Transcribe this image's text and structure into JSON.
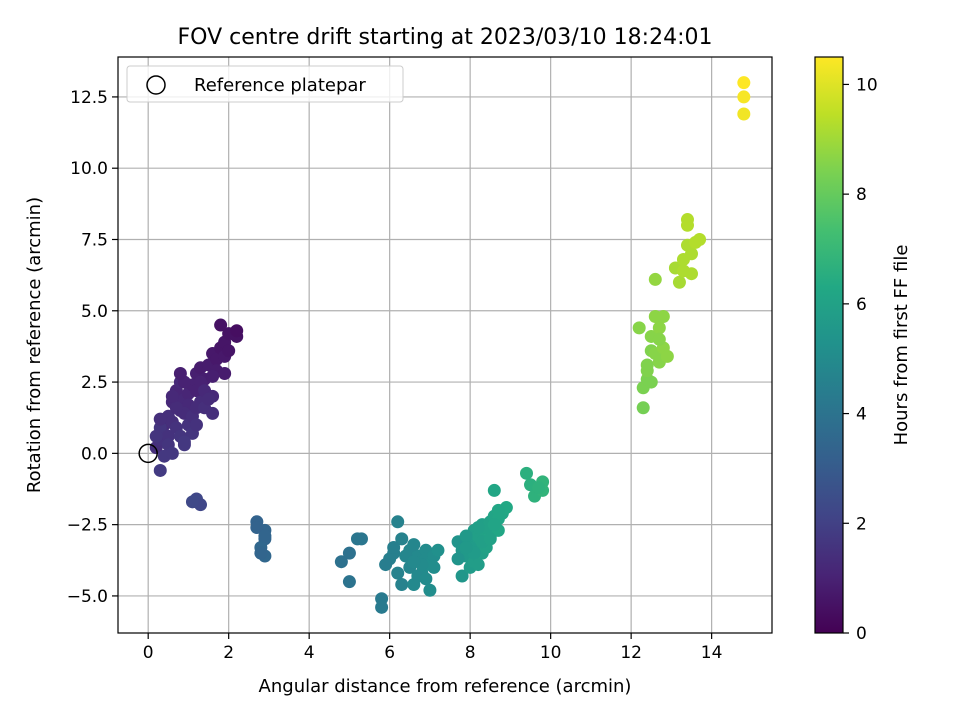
{
  "chart_data": {
    "type": "scatter",
    "title": "FOV centre drift starting at 2023/03/10 18:24:01",
    "xlabel": "Angular distance from reference (arcmin)",
    "ylabel": "Rotation from reference (arcmin)",
    "xlim": [
      -0.75,
      15.5
    ],
    "ylim": [
      -6.3,
      13.9
    ],
    "xticks": [
      0,
      2,
      4,
      6,
      8,
      10,
      12,
      14
    ],
    "xtick_labels": [
      "0",
      "2",
      "4",
      "6",
      "8",
      "10",
      "12",
      "14"
    ],
    "yticks": [
      -5.0,
      -2.5,
      0.0,
      2.5,
      5.0,
      7.5,
      10.0,
      12.5
    ],
    "ytick_labels": [
      "−5.0",
      "−2.5",
      "0.0",
      "2.5",
      "5.0",
      "7.5",
      "10.0",
      "12.5"
    ],
    "grid": true,
    "legend": {
      "position": "upper-left",
      "entries": [
        {
          "label": "Reference platepar",
          "marker": "open-circle"
        }
      ]
    },
    "reference_point": {
      "x": 0,
      "y": 0
    },
    "colorbar": {
      "label": "Hours from first FF file",
      "colormap": "viridis",
      "range": [
        0,
        10.5
      ],
      "ticks": [
        0,
        2,
        4,
        6,
        8,
        10
      ],
      "tick_labels": [
        "0",
        "2",
        "4",
        "6",
        "8",
        "10"
      ]
    },
    "points": [
      {
        "x": 0.2,
        "y": 0.2,
        "h": 1.4
      },
      {
        "x": 0.3,
        "y": 0.5,
        "h": 1.5
      },
      {
        "x": 0.4,
        "y": 1.0,
        "h": 1.3
      },
      {
        "x": 0.5,
        "y": 1.3,
        "h": 1.4
      },
      {
        "x": 0.3,
        "y": 0.9,
        "h": 1.6
      },
      {
        "x": 0.6,
        "y": 1.8,
        "h": 1.2
      },
      {
        "x": 0.7,
        "y": 2.2,
        "h": 1.1
      },
      {
        "x": 0.8,
        "y": 2.5,
        "h": 1.2
      },
      {
        "x": 0.5,
        "y": 0.6,
        "h": 1.5
      },
      {
        "x": 0.6,
        "y": 1.1,
        "h": 1.4
      },
      {
        "x": 0.8,
        "y": 1.5,
        "h": 1.3
      },
      {
        "x": 0.9,
        "y": 1.9,
        "h": 1.2
      },
      {
        "x": 1.0,
        "y": 2.1,
        "h": 1.1
      },
      {
        "x": 1.1,
        "y": 2.4,
        "h": 1.0
      },
      {
        "x": 1.2,
        "y": 2.8,
        "h": 0.9
      },
      {
        "x": 1.3,
        "y": 3.0,
        "h": 0.8
      },
      {
        "x": 1.4,
        "y": 2.6,
        "h": 0.9
      },
      {
        "x": 1.5,
        "y": 3.1,
        "h": 0.8
      },
      {
        "x": 1.6,
        "y": 3.5,
        "h": 0.7
      },
      {
        "x": 1.7,
        "y": 3.3,
        "h": 0.7
      },
      {
        "x": 1.8,
        "y": 3.7,
        "h": 0.6
      },
      {
        "x": 1.9,
        "y": 3.9,
        "h": 0.6
      },
      {
        "x": 2.0,
        "y": 4.2,
        "h": 0.5
      },
      {
        "x": 2.1,
        "y": 4.2,
        "h": 0.5
      },
      {
        "x": 1.8,
        "y": 4.5,
        "h": 0.5
      },
      {
        "x": 1.9,
        "y": 3.4,
        "h": 0.7
      },
      {
        "x": 2.0,
        "y": 3.6,
        "h": 0.6
      },
      {
        "x": 1.7,
        "y": 2.9,
        "h": 0.8
      },
      {
        "x": 1.9,
        "y": 2.8,
        "h": 0.8
      },
      {
        "x": 1.6,
        "y": 2.7,
        "h": 0.9
      },
      {
        "x": 1.3,
        "y": 2.5,
        "h": 1.0
      },
      {
        "x": 1.2,
        "y": 2.2,
        "h": 1.0
      },
      {
        "x": 1.0,
        "y": 1.7,
        "h": 1.2
      },
      {
        "x": 0.9,
        "y": 1.4,
        "h": 1.3
      },
      {
        "x": 0.7,
        "y": 0.9,
        "h": 1.5
      },
      {
        "x": 0.5,
        "y": 0.3,
        "h": 1.6
      },
      {
        "x": 0.4,
        "y": -0.1,
        "h": 1.7
      },
      {
        "x": 0.6,
        "y": 0.0,
        "h": 1.7
      },
      {
        "x": 0.8,
        "y": 0.6,
        "h": 1.6
      },
      {
        "x": 1.0,
        "y": 1.0,
        "h": 1.5
      },
      {
        "x": 1.1,
        "y": 1.3,
        "h": 1.4
      },
      {
        "x": 1.3,
        "y": 1.8,
        "h": 1.3
      },
      {
        "x": 1.4,
        "y": 2.2,
        "h": 1.2
      },
      {
        "x": 1.6,
        "y": 2.0,
        "h": 1.2
      },
      {
        "x": 1.2,
        "y": 1.6,
        "h": 1.3
      },
      {
        "x": 0.9,
        "y": 2.5,
        "h": 1.0
      },
      {
        "x": 0.8,
        "y": 2.8,
        "h": 0.9
      },
      {
        "x": 0.7,
        "y": 1.6,
        "h": 1.3
      },
      {
        "x": 0.2,
        "y": 0.6,
        "h": 1.6
      },
      {
        "x": 0.3,
        "y": 1.2,
        "h": 1.4
      },
      {
        "x": 0.6,
        "y": 2.0,
        "h": 1.2
      },
      {
        "x": 0.9,
        "y": 0.3,
        "h": 1.7
      },
      {
        "x": 1.1,
        "y": 0.7,
        "h": 1.6
      },
      {
        "x": 1.2,
        "y": 1.0,
        "h": 1.5
      },
      {
        "x": 1.4,
        "y": 1.6,
        "h": 1.4
      },
      {
        "x": 1.6,
        "y": 1.4,
        "h": 1.4
      },
      {
        "x": 1.5,
        "y": 1.9,
        "h": 1.3
      },
      {
        "x": 0.3,
        "y": -0.6,
        "h": 1.8
      },
      {
        "x": 0.9,
        "y": 0.4,
        "h": 1.7
      },
      {
        "x": 2.2,
        "y": 4.1,
        "h": 0.5
      },
      {
        "x": 2.2,
        "y": 4.3,
        "h": 0.4
      },
      {
        "x": 1.2,
        "y": -1.6,
        "h": 2.2
      },
      {
        "x": 1.2,
        "y": -1.7,
        "h": 2.3
      },
      {
        "x": 1.3,
        "y": -1.8,
        "h": 2.2
      },
      {
        "x": 1.1,
        "y": -1.7,
        "h": 2.3
      },
      {
        "x": 2.7,
        "y": -2.4,
        "h": 3.3
      },
      {
        "x": 2.9,
        "y": -2.7,
        "h": 3.4
      },
      {
        "x": 2.9,
        "y": -3.0,
        "h": 3.4
      },
      {
        "x": 2.8,
        "y": -3.3,
        "h": 3.5
      },
      {
        "x": 2.9,
        "y": -3.6,
        "h": 3.5
      },
      {
        "x": 2.8,
        "y": -3.5,
        "h": 3.4
      },
      {
        "x": 2.7,
        "y": -2.6,
        "h": 3.3
      },
      {
        "x": 2.9,
        "y": -2.9,
        "h": 3.4
      },
      {
        "x": 4.8,
        "y": -3.8,
        "h": 3.9
      },
      {
        "x": 5.0,
        "y": -3.5,
        "h": 3.9
      },
      {
        "x": 5.0,
        "y": -4.5,
        "h": 4.0
      },
      {
        "x": 5.3,
        "y": -3.0,
        "h": 4.1
      },
      {
        "x": 5.2,
        "y": -3.0,
        "h": 4.1
      },
      {
        "x": 5.8,
        "y": -5.1,
        "h": 4.3
      },
      {
        "x": 5.8,
        "y": -5.4,
        "h": 4.3
      },
      {
        "x": 6.0,
        "y": -3.7,
        "h": 4.5
      },
      {
        "x": 6.1,
        "y": -3.5,
        "h": 4.5
      },
      {
        "x": 6.2,
        "y": -2.4,
        "h": 4.6
      },
      {
        "x": 6.2,
        "y": -4.2,
        "h": 4.6
      },
      {
        "x": 6.3,
        "y": -4.6,
        "h": 4.6
      },
      {
        "x": 6.3,
        "y": -3.0,
        "h": 4.6
      },
      {
        "x": 5.9,
        "y": -3.9,
        "h": 4.4
      },
      {
        "x": 6.1,
        "y": -3.3,
        "h": 4.5
      },
      {
        "x": 6.5,
        "y": -3.4,
        "h": 4.8
      },
      {
        "x": 6.5,
        "y": -4.0,
        "h": 4.8
      },
      {
        "x": 6.6,
        "y": -4.6,
        "h": 4.9
      },
      {
        "x": 6.7,
        "y": -3.6,
        "h": 4.9
      },
      {
        "x": 6.6,
        "y": -3.2,
        "h": 4.8
      },
      {
        "x": 6.8,
        "y": -4.2,
        "h": 5.0
      },
      {
        "x": 6.9,
        "y": -3.4,
        "h": 5.0
      },
      {
        "x": 6.9,
        "y": -3.7,
        "h": 5.0
      },
      {
        "x": 7.0,
        "y": -3.9,
        "h": 5.1
      },
      {
        "x": 7.1,
        "y": -3.6,
        "h": 5.1
      },
      {
        "x": 7.0,
        "y": -4.8,
        "h": 5.1
      },
      {
        "x": 7.1,
        "y": -4.0,
        "h": 5.1
      },
      {
        "x": 7.2,
        "y": -3.4,
        "h": 5.2
      },
      {
        "x": 6.4,
        "y": -3.6,
        "h": 4.8
      },
      {
        "x": 6.7,
        "y": -4.3,
        "h": 4.9
      },
      {
        "x": 6.8,
        "y": -3.9,
        "h": 5.0
      },
      {
        "x": 6.6,
        "y": -3.8,
        "h": 4.9
      },
      {
        "x": 6.9,
        "y": -4.4,
        "h": 5.0
      },
      {
        "x": 7.7,
        "y": -3.1,
        "h": 5.4
      },
      {
        "x": 7.8,
        "y": -3.4,
        "h": 5.5
      },
      {
        "x": 7.8,
        "y": -4.3,
        "h": 5.5
      },
      {
        "x": 7.9,
        "y": -3.6,
        "h": 5.6
      },
      {
        "x": 8.0,
        "y": -3.0,
        "h": 5.7
      },
      {
        "x": 8.0,
        "y": -4.0,
        "h": 5.7
      },
      {
        "x": 8.1,
        "y": -2.7,
        "h": 5.8
      },
      {
        "x": 8.1,
        "y": -3.8,
        "h": 5.8
      },
      {
        "x": 8.2,
        "y": -3.2,
        "h": 5.8
      },
      {
        "x": 8.2,
        "y": -2.9,
        "h": 5.9
      },
      {
        "x": 8.3,
        "y": -2.5,
        "h": 5.9
      },
      {
        "x": 8.3,
        "y": -3.5,
        "h": 5.9
      },
      {
        "x": 8.4,
        "y": -2.8,
        "h": 6.0
      },
      {
        "x": 8.4,
        "y": -3.3,
        "h": 6.0
      },
      {
        "x": 8.5,
        "y": -2.4,
        "h": 6.0
      },
      {
        "x": 8.5,
        "y": -2.9,
        "h": 6.1
      },
      {
        "x": 8.6,
        "y": -2.6,
        "h": 6.1
      },
      {
        "x": 8.6,
        "y": -2.2,
        "h": 6.1
      },
      {
        "x": 8.7,
        "y": -2.3,
        "h": 6.2
      },
      {
        "x": 8.7,
        "y": -2.7,
        "h": 6.2
      },
      {
        "x": 8.8,
        "y": -2.1,
        "h": 6.2
      },
      {
        "x": 8.9,
        "y": -1.9,
        "h": 6.3
      },
      {
        "x": 8.6,
        "y": -1.3,
        "h": 6.2
      },
      {
        "x": 8.0,
        "y": -3.3,
        "h": 5.7
      },
      {
        "x": 7.9,
        "y": -2.9,
        "h": 5.6
      },
      {
        "x": 8.1,
        "y": -3.5,
        "h": 5.7
      },
      {
        "x": 8.2,
        "y": -3.9,
        "h": 5.8
      },
      {
        "x": 8.3,
        "y": -3.1,
        "h": 5.9
      },
      {
        "x": 8.4,
        "y": -2.6,
        "h": 6.0
      },
      {
        "x": 8.5,
        "y": -3.0,
        "h": 6.0
      },
      {
        "x": 7.7,
        "y": -3.7,
        "h": 5.4
      },
      {
        "x": 7.9,
        "y": -3.3,
        "h": 5.6
      },
      {
        "x": 8.2,
        "y": -2.6,
        "h": 5.9
      },
      {
        "x": 8.6,
        "y": -2.5,
        "h": 6.1
      },
      {
        "x": 8.7,
        "y": -2.0,
        "h": 6.2
      },
      {
        "x": 9.4,
        "y": -0.7,
        "h": 6.6
      },
      {
        "x": 9.5,
        "y": -1.1,
        "h": 6.6
      },
      {
        "x": 9.6,
        "y": -1.5,
        "h": 6.7
      },
      {
        "x": 9.8,
        "y": -1.0,
        "h": 6.8
      },
      {
        "x": 9.8,
        "y": -1.3,
        "h": 6.8
      },
      {
        "x": 9.7,
        "y": -1.2,
        "h": 6.7
      },
      {
        "x": 12.3,
        "y": 1.6,
        "h": 8.3
      },
      {
        "x": 12.3,
        "y": 2.3,
        "h": 8.4
      },
      {
        "x": 12.4,
        "y": 2.6,
        "h": 8.4
      },
      {
        "x": 12.4,
        "y": 3.1,
        "h": 8.5
      },
      {
        "x": 12.5,
        "y": 2.5,
        "h": 8.4
      },
      {
        "x": 12.5,
        "y": 3.6,
        "h": 8.5
      },
      {
        "x": 12.2,
        "y": 4.4,
        "h": 8.6
      },
      {
        "x": 12.5,
        "y": 4.1,
        "h": 8.6
      },
      {
        "x": 12.6,
        "y": 4.8,
        "h": 8.7
      },
      {
        "x": 12.7,
        "y": 4.4,
        "h": 8.7
      },
      {
        "x": 12.8,
        "y": 4.8,
        "h": 8.7
      },
      {
        "x": 12.6,
        "y": 3.5,
        "h": 8.6
      },
      {
        "x": 12.7,
        "y": 3.2,
        "h": 8.6
      },
      {
        "x": 12.8,
        "y": 3.7,
        "h": 8.7
      },
      {
        "x": 12.9,
        "y": 3.4,
        "h": 8.7
      },
      {
        "x": 12.6,
        "y": 6.1,
        "h": 8.8
      },
      {
        "x": 12.7,
        "y": 4.0,
        "h": 8.6
      },
      {
        "x": 12.4,
        "y": 2.9,
        "h": 8.5
      },
      {
        "x": 13.1,
        "y": 6.5,
        "h": 9.1
      },
      {
        "x": 13.2,
        "y": 6.0,
        "h": 9.1
      },
      {
        "x": 13.3,
        "y": 6.4,
        "h": 9.2
      },
      {
        "x": 13.4,
        "y": 7.3,
        "h": 9.2
      },
      {
        "x": 13.4,
        "y": 8.0,
        "h": 9.3
      },
      {
        "x": 13.5,
        "y": 7.0,
        "h": 9.2
      },
      {
        "x": 13.5,
        "y": 6.3,
        "h": 9.2
      },
      {
        "x": 13.6,
        "y": 7.4,
        "h": 9.3
      },
      {
        "x": 13.7,
        "y": 7.5,
        "h": 9.3
      },
      {
        "x": 13.4,
        "y": 8.2,
        "h": 9.3
      },
      {
        "x": 13.3,
        "y": 6.8,
        "h": 9.2
      },
      {
        "x": 14.8,
        "y": 11.9,
        "h": 10.3
      },
      {
        "x": 14.8,
        "y": 12.5,
        "h": 10.4
      },
      {
        "x": 14.8,
        "y": 13.0,
        "h": 10.5
      }
    ]
  }
}
